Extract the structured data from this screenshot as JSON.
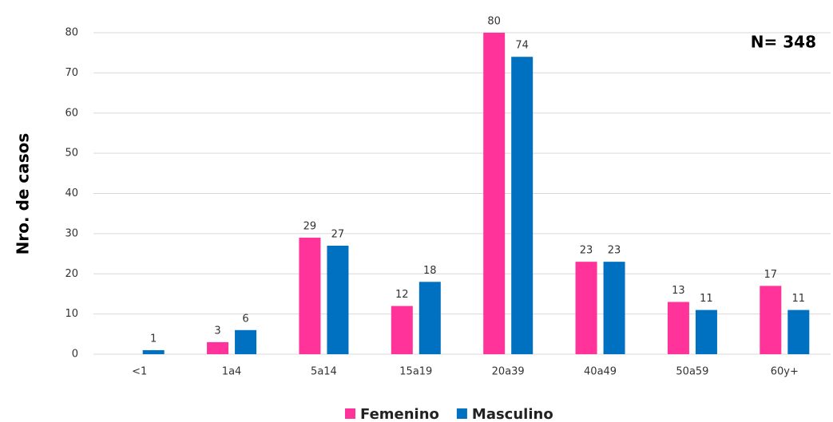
{
  "chart_data": {
    "type": "bar",
    "y_label": "Nro. de casos",
    "annotation": "N= 348",
    "categories": [
      "<1",
      "1a4",
      "5a14",
      "15a19",
      "20a39",
      "40a49",
      "50a59",
      "60y+"
    ],
    "series": [
      {
        "name": "Femenino",
        "color": "#ff3399",
        "values": [
          null,
          3,
          29,
          12,
          80,
          23,
          13,
          17
        ]
      },
      {
        "name": "Masculino",
        "color": "#0070c0",
        "values": [
          1,
          6,
          27,
          18,
          74,
          23,
          11,
          11
        ]
      }
    ],
    "ylim": [
      0,
      80
    ],
    "yticks": [
      0,
      10,
      20,
      30,
      40,
      50,
      60,
      70,
      80
    ],
    "grid": true,
    "legend": "bottom"
  }
}
